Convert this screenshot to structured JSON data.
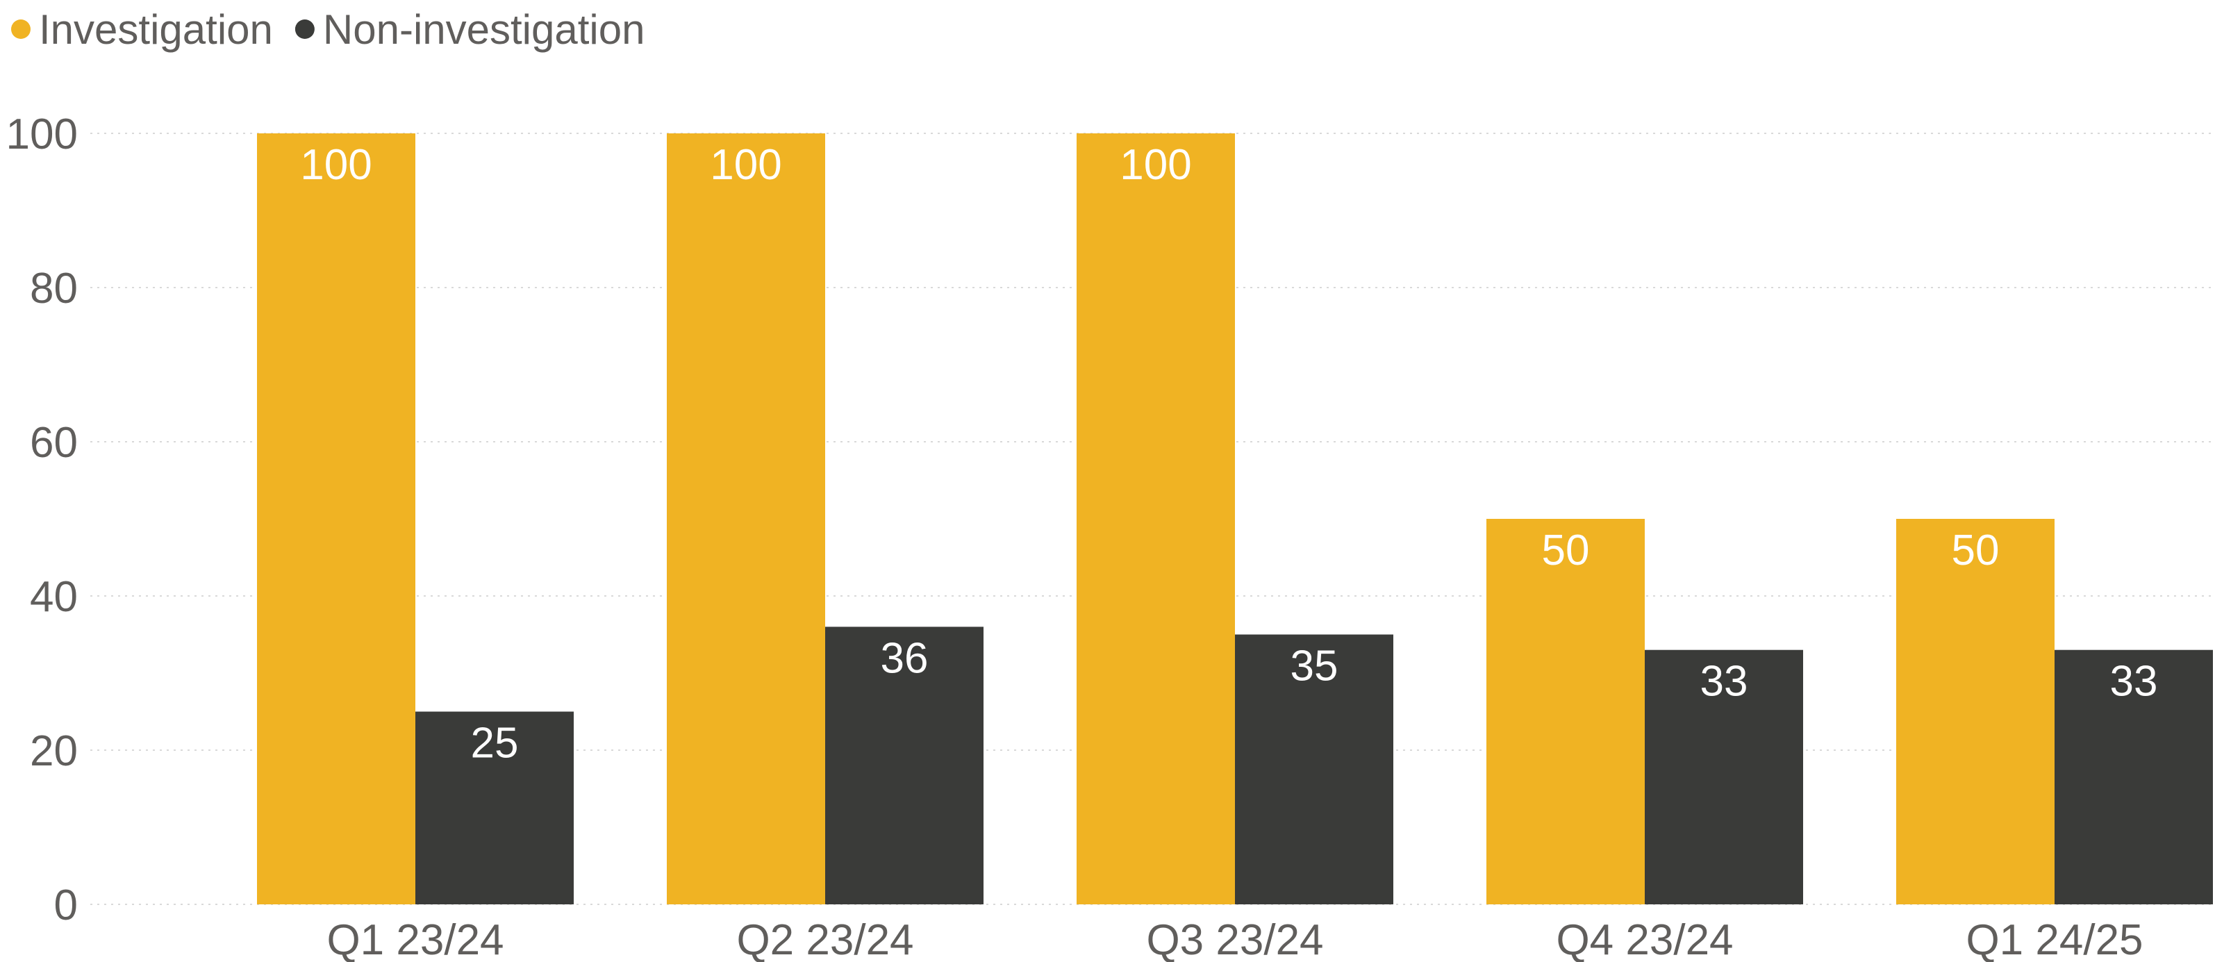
{
  "chart_data": {
    "type": "bar",
    "categories": [
      "Q1 23/24",
      "Q2 23/24",
      "Q3 23/24",
      "Q4 23/24",
      "Q1 24/25"
    ],
    "series": [
      {
        "name": "Investigation",
        "values": [
          100,
          100,
          100,
          50,
          50
        ],
        "color": "#f0b323"
      },
      {
        "name": "Non-investigation",
        "values": [
          25,
          36,
          35,
          33,
          33
        ],
        "color": "#3a3b39"
      }
    ],
    "title": "",
    "xlabel": "",
    "ylabel": "",
    "ylim": [
      0,
      100
    ],
    "yticks": [
      0,
      20,
      40,
      60,
      80,
      100
    ],
    "grid": true,
    "legend_position": "top-left",
    "data_labels": true
  }
}
